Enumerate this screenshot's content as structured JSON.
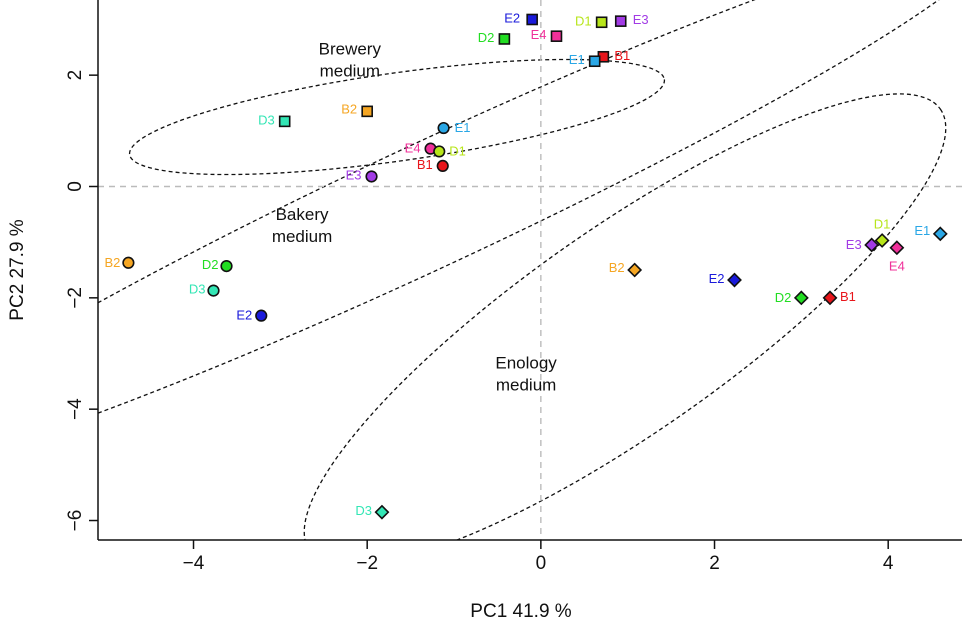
{
  "chart_data": {
    "type": "scatter",
    "title": "",
    "xlabel": "PC1  41.9 %",
    "ylabel": "PC2  27.9 %",
    "xlim": [
      -5.1,
      4.85
    ],
    "ylim": [
      -6.35,
      3.35
    ],
    "xticks": [
      -4,
      -2,
      0,
      2,
      4
    ],
    "yticks": [
      -6,
      -4,
      -2,
      0,
      2
    ],
    "xtick_labels": [
      "−4",
      "−2",
      "0",
      "2",
      "4"
    ],
    "ytick_labels": [
      "−6",
      "−4",
      "−2",
      "0",
      "2"
    ],
    "grid": false,
    "reference_lines": {
      "x": 0,
      "y": 0,
      "style": "dashed",
      "color": "#bbbbbb"
    },
    "strain_colors": {
      "B1": "#e8151b",
      "B2": "#f5a623",
      "D1": "#b7e51a",
      "D2": "#22dd22",
      "D3": "#33e6b5",
      "E1": "#2aa7e6",
      "E2": "#1a1adb",
      "E3": "#a23be5",
      "E4": "#f0309a"
    },
    "groups": [
      {
        "name": "Brewery medium",
        "label_lines": [
          "Brewery",
          "medium"
        ],
        "label_pos": [
          -2.2,
          2.37
        ],
        "marker": "square",
        "points": [
          {
            "label": "E2",
            "x": -0.1,
            "y": 3.0
          },
          {
            "label": "D1",
            "x": 0.7,
            "y": 2.95
          },
          {
            "label": "E3",
            "x": 0.92,
            "y": 2.97
          },
          {
            "label": "D2",
            "x": -0.42,
            "y": 2.65
          },
          {
            "label": "E4",
            "x": 0.18,
            "y": 2.7
          },
          {
            "label": "B1",
            "x": 0.72,
            "y": 2.33
          },
          {
            "label": "E1",
            "x": 0.62,
            "y": 2.25
          },
          {
            "label": "B2",
            "x": -2.0,
            "y": 1.35
          },
          {
            "label": "D3",
            "x": -2.95,
            "y": 1.17
          }
        ]
      },
      {
        "name": "Bakery medium",
        "label_lines": [
          "Bakery",
          "medium"
        ],
        "label_pos": [
          -2.75,
          -0.6
        ],
        "marker": "circle",
        "points": [
          {
            "label": "E1",
            "x": -1.12,
            "y": 1.05
          },
          {
            "label": "E4",
            "x": -1.27,
            "y": 0.68
          },
          {
            "label": "D1",
            "x": -1.17,
            "y": 0.63
          },
          {
            "label": "B1",
            "x": -1.13,
            "y": 0.37
          },
          {
            "label": "E3",
            "x": -1.95,
            "y": 0.18
          },
          {
            "label": "B2",
            "x": -4.75,
            "y": -1.37
          },
          {
            "label": "D2",
            "x": -3.62,
            "y": -1.43
          },
          {
            "label": "D3",
            "x": -3.77,
            "y": -1.87
          },
          {
            "label": "E2",
            "x": -3.22,
            "y": -2.32
          }
        ]
      },
      {
        "name": "Enology medium",
        "label_lines": [
          "Enology",
          "medium"
        ],
        "label_pos": [
          -0.17,
          -3.27
        ],
        "marker": "diamond",
        "points": [
          {
            "label": "D1",
            "x": 3.93,
            "y": -0.97
          },
          {
            "label": "E3",
            "x": 3.81,
            "y": -1.05
          },
          {
            "label": "E1",
            "x": 4.6,
            "y": -0.85
          },
          {
            "label": "E4",
            "x": 4.1,
            "y": -1.1
          },
          {
            "label": "B2",
            "x": 1.08,
            "y": -1.5
          },
          {
            "label": "E2",
            "x": 2.23,
            "y": -1.68
          },
          {
            "label": "D2",
            "x": 3.0,
            "y": -2.0
          },
          {
            "label": "B1",
            "x": 3.33,
            "y": -2.0
          },
          {
            "label": "D3",
            "x": -1.83,
            "y": -5.85
          }
        ]
      }
    ]
  }
}
